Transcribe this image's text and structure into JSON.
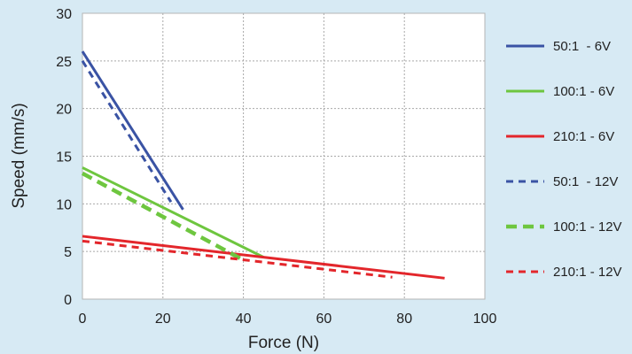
{
  "chart_data": {
    "type": "line",
    "title": "",
    "xlabel": "Force (N)",
    "ylabel": "Speed (mm/s)",
    "xlim": [
      0,
      100
    ],
    "ylim": [
      0,
      30
    ],
    "xticks": [
      0,
      20,
      40,
      60,
      80,
      100
    ],
    "yticks": [
      0,
      5,
      10,
      15,
      20,
      25,
      30
    ],
    "grid": true,
    "legend_position": "right",
    "background_color": "#d7eaf4",
    "plot_background_color": "#ffffff",
    "series": [
      {
        "name": "50:1  - 6V",
        "color": "#3a53a4",
        "dash": "solid",
        "x": [
          0,
          25
        ],
        "y": [
          26,
          9.4
        ]
      },
      {
        "name": "100:1 - 6V",
        "color": "#6ec63f",
        "dash": "solid",
        "x": [
          0,
          45
        ],
        "y": [
          13.8,
          4.4
        ]
      },
      {
        "name": "210:1 - 6V",
        "color": "#e3262b",
        "dash": "solid",
        "x": [
          0,
          90
        ],
        "y": [
          6.6,
          2.2
        ]
      },
      {
        "name": "50:1  - 12V",
        "color": "#3a53a4",
        "dash": "dashed",
        "x": [
          0,
          22
        ],
        "y": [
          25,
          10.2
        ]
      },
      {
        "name": "100:1 - 12V",
        "color": "#6ec63f",
        "dash": "dashed",
        "x": [
          0,
          40
        ],
        "y": [
          13.2,
          4.1
        ]
      },
      {
        "name": "210:1 - 12V",
        "color": "#e3262b",
        "dash": "dashed",
        "x": [
          0,
          77
        ],
        "y": [
          6.1,
          2.3
        ]
      }
    ]
  }
}
